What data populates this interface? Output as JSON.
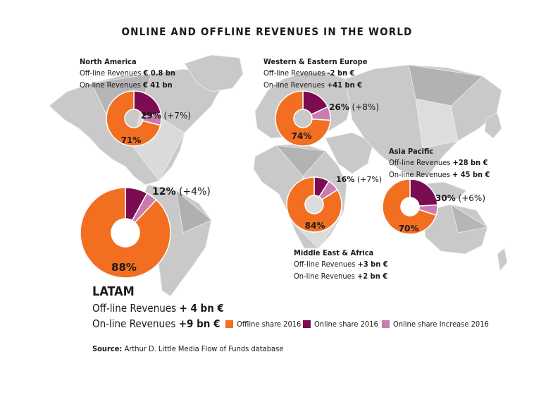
{
  "title": "ONLINE AND OFFLINE REVENUES IN THE WORLD",
  "colors": {
    "offline": "#f26f21",
    "online": "#7b0c52",
    "increase": "#c97cb0",
    "map": "#c9c9c9"
  },
  "legend": {
    "offline": "Offline share 2016",
    "online": "Online share 2016",
    "increase": "Online share Increase 2016"
  },
  "source": {
    "label": "Source:",
    "text": "Arthur D. Little Media Flow of Funds database"
  },
  "regions": {
    "north_america": {
      "name": "North America",
      "offline_label": "Off-line Revenues ",
      "offline_value": "€ 0.8 bn",
      "online_label": "On-line Revenues ",
      "online_value": "€ 41 bn"
    },
    "europe": {
      "name": "Western & Eastern Europe",
      "offline_label": "Off-line Revenues ",
      "offline_value": "-2 bn €",
      "online_label": "On-line Revenues ",
      "online_value": "+41 bn €"
    },
    "asia": {
      "name": "Asia Pacific",
      "offline_label": "Off-line Revenues ",
      "offline_value": "+28 bn €",
      "online_label": "On-line Revenues ",
      "online_value": "+ 45 bn €"
    },
    "mea": {
      "name": "Middle East & Africa",
      "offline_label": "Off-line Revenues ",
      "offline_value": "+3 bn €",
      "online_label": "On-line Revenues ",
      "online_value": "+2 bn €"
    },
    "latam": {
      "name": "LATAM",
      "offline_label": "Off-line Revenues ",
      "offline_value": "+ 4 bn €",
      "online_label": "On-line Revenues ",
      "online_value": "+9 bn €"
    }
  },
  "chart_data": {
    "type": "pie",
    "title": "ONLINE AND OFFLINE REVENUES IN THE WORLD",
    "legend": [
      "Offline share 2016",
      "Online share 2016",
      "Online share Increase 2016"
    ],
    "series": [
      {
        "region": "North America",
        "offline_pct": 71,
        "online_pct": 29,
        "increase_pct": 7,
        "offline_label": "71%",
        "online_label": "29%",
        "increase_label": "(+7%)"
      },
      {
        "region": "Western & Eastern Europe",
        "offline_pct": 74,
        "online_pct": 26,
        "increase_pct": 8,
        "offline_label": "74%",
        "online_label": "26%",
        "increase_label": "(+8%)"
      },
      {
        "region": "Middle East & Africa",
        "offline_pct": 84,
        "online_pct": 16,
        "increase_pct": 7,
        "offline_label": "84%",
        "online_label": "16%",
        "increase_label": "(+7%)"
      },
      {
        "region": "Asia Pacific",
        "offline_pct": 70,
        "online_pct": 30,
        "increase_pct": 6,
        "offline_label": "70%",
        "online_label": "30%",
        "increase_label": "(+6%)"
      },
      {
        "region": "LATAM",
        "offline_pct": 88,
        "online_pct": 12,
        "increase_pct": 4,
        "offline_label": "88%",
        "online_label": "12%",
        "increase_label": "(+4%)"
      }
    ]
  }
}
